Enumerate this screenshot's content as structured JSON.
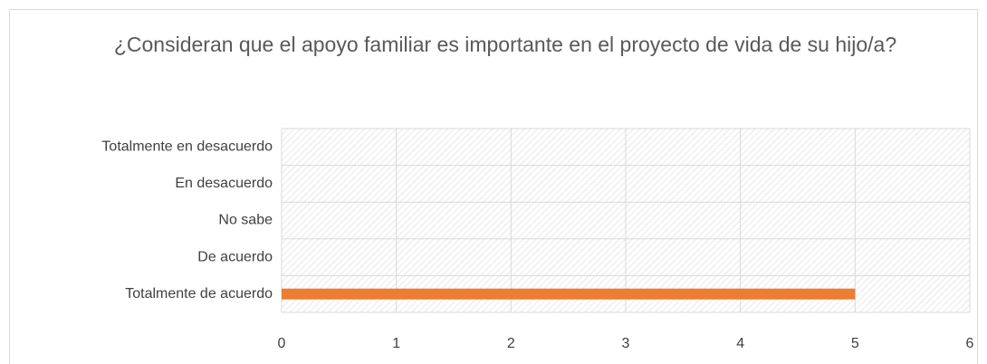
{
  "chart_data": {
    "type": "barh",
    "title": "¿Consideran que el apoyo familiar es importante en el proyecto de vida de su hijo/a?",
    "categories": [
      "Totalmente en desacuerdo",
      "En desacuerdo",
      "No sabe",
      "De acuerdo",
      "Totalmente de acuerdo"
    ],
    "values": [
      0,
      0,
      0,
      0,
      5
    ],
    "color": "#ed7d31",
    "xlim": [
      0,
      6
    ],
    "xticks": [
      0,
      1,
      2,
      3,
      4,
      5,
      6
    ],
    "grid": true
  }
}
